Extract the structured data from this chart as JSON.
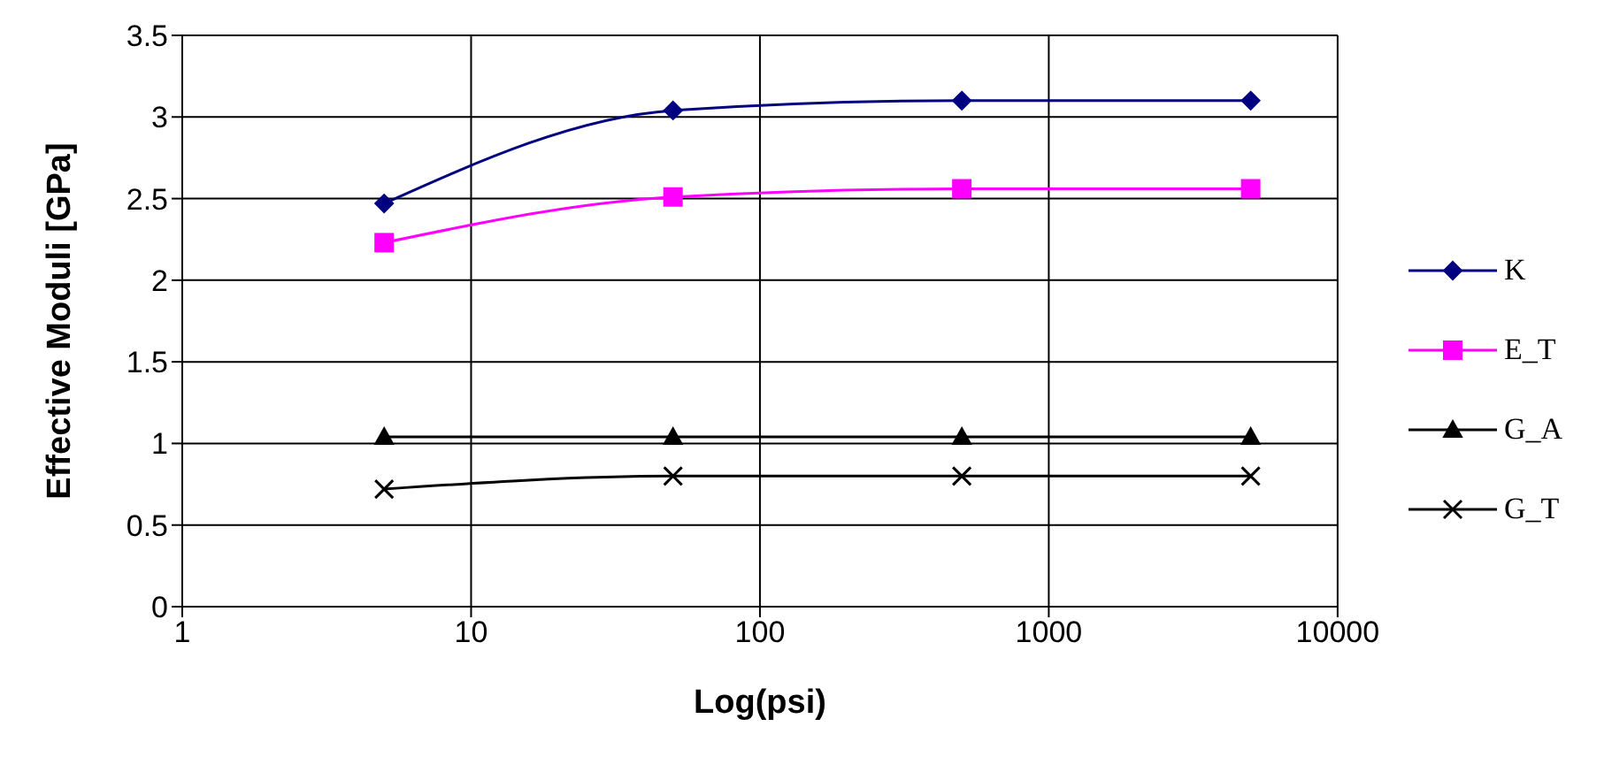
{
  "chart_data": {
    "type": "line",
    "xlabel": "Log(psi)",
    "ylabel": "Effective Moduli [GPa]",
    "x": [
      5,
      50,
      500,
      5000
    ],
    "log": "x",
    "xlim": [
      1,
      10000
    ],
    "xticks": [
      1,
      10,
      100,
      1000,
      10000
    ],
    "ylim": [
      0,
      3.5
    ],
    "yticks": [
      0,
      0.5,
      1,
      1.5,
      2,
      2.5,
      3,
      3.5
    ],
    "grid": true,
    "legend": "right",
    "series": [
      {
        "name": "K",
        "color": "#000080",
        "marker": "diamond",
        "values": [
          2.47,
          3.04,
          3.1,
          3.1
        ]
      },
      {
        "name": "E_T",
        "color": "#ff00ff",
        "marker": "square",
        "values": [
          2.23,
          2.51,
          2.56,
          2.56
        ]
      },
      {
        "name": "G_A",
        "color": "#000000",
        "marker": "triangle",
        "values": [
          1.04,
          1.04,
          1.04,
          1.04
        ]
      },
      {
        "name": "G_T",
        "color": "#000000",
        "marker": "cross",
        "values": [
          0.72,
          0.8,
          0.8,
          0.8
        ]
      }
    ]
  }
}
